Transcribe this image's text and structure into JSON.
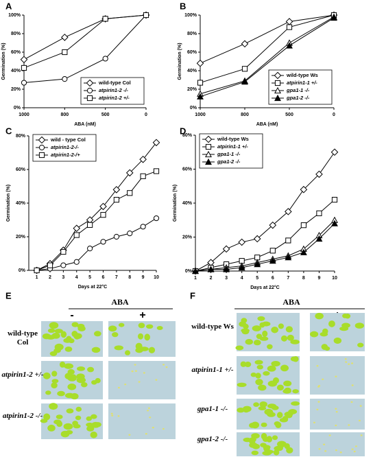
{
  "chart_data": [
    {
      "type": "line",
      "label": "A",
      "ylabel": "Germination (%)",
      "xlabel": "ABA (nM)",
      "categories": [
        "1000",
        "800",
        "500",
        "0"
      ],
      "ylim": [
        0,
        100
      ],
      "yticks": [
        {
          "value": 0,
          "label": "0%"
        },
        {
          "value": 20,
          "label": "20%"
        },
        {
          "value": 40,
          "label": "40%"
        },
        {
          "value": 60,
          "label": "60%"
        },
        {
          "value": 80,
          "label": "80%"
        },
        {
          "value": 100,
          "label": "100%"
        }
      ],
      "legend": "lower right",
      "series": [
        {
          "name": "wild-type Col",
          "color": "#000000",
          "marker": "diamond",
          "values": [
            52,
            76,
            96,
            100
          ]
        },
        {
          "name": "atpirin1-2 -/-",
          "color": "#000000",
          "marker": "circle",
          "values": [
            27,
            31,
            53,
            100
          ]
        },
        {
          "name": "atpirin1-2 +/-",
          "color": "#000000",
          "marker": "square",
          "values": [
            43,
            60,
            96,
            100
          ]
        }
      ]
    },
    {
      "type": "line",
      "label": "B",
      "ylabel": "Germination (%)",
      "xlabel": "ABA (nM)",
      "categories": [
        "1000",
        "800",
        "500",
        "0"
      ],
      "ylim": [
        0,
        100
      ],
      "yticks": [
        {
          "value": 0,
          "label": "0%"
        },
        {
          "value": 20,
          "label": "20%"
        },
        {
          "value": 40,
          "label": "40%"
        },
        {
          "value": 60,
          "label": "60%"
        },
        {
          "value": 80,
          "label": "80%"
        },
        {
          "value": 100,
          "label": "100%"
        }
      ],
      "legend": "lower right",
      "series": [
        {
          "name": "wild-type Ws",
          "color": "#000000",
          "marker": "diamond",
          "values": [
            48,
            69,
            93,
            100
          ]
        },
        {
          "name": "atpirin1-1 +/-",
          "color": "#000000",
          "marker": "square",
          "values": [
            27,
            42,
            87,
            100
          ]
        },
        {
          "name": "gpa1-1 -/-",
          "color": "#000000",
          "marker": "triangle",
          "values": [
            15,
            29,
            70,
            98
          ]
        },
        {
          "name": "gpa1-2 -/-",
          "color": "#000000",
          "marker": "triangle-filled",
          "values": [
            12,
            28,
            67,
            97
          ]
        }
      ]
    },
    {
      "type": "line",
      "label": "C",
      "ylabel": "Germination (%)",
      "xlabel": "Days at 22°C",
      "x": [
        1,
        2,
        3,
        4,
        5,
        6,
        7,
        8,
        9,
        10
      ],
      "xlim": [
        0.4,
        10
      ],
      "xticks": [
        1,
        2,
        3,
        4,
        5,
        6,
        7,
        8,
        9,
        10
      ],
      "ylim": [
        0,
        80
      ],
      "yticks": [
        {
          "value": 0,
          "label": "0%"
        },
        {
          "value": 20,
          "label": "20%"
        },
        {
          "value": 40,
          "label": "40%"
        },
        {
          "value": 60,
          "label": "60%"
        },
        {
          "value": 80,
          "label": "80%"
        }
      ],
      "legend": "upper left",
      "series": [
        {
          "name": "wild - type Col",
          "color": "#000000",
          "marker": "diamond",
          "values": [
            0,
            4,
            12,
            25,
            30,
            38,
            48,
            58,
            66,
            76
          ]
        },
        {
          "name": "atpirin1-2-/-",
          "color": "#000000",
          "marker": "circle",
          "values": [
            0,
            1,
            3,
            5,
            13,
            17,
            20,
            22,
            26,
            31
          ]
        },
        {
          "name": "atpirin1-2-/+",
          "color": "#000000",
          "marker": "square",
          "values": [
            0,
            3,
            11,
            21,
            27,
            33,
            42,
            46,
            56,
            59
          ]
        }
      ]
    },
    {
      "type": "line",
      "label": "D",
      "ylabel": "Germination (%)",
      "xlabel": "Days at 22°C",
      "x": [
        1,
        2,
        3,
        4,
        5,
        6,
        7,
        8,
        9,
        10
      ],
      "xlim": [
        1,
        10
      ],
      "xticks": [
        1,
        2,
        3,
        4,
        5,
        6,
        7,
        8,
        9,
        10
      ],
      "ylim": [
        0,
        80
      ],
      "yticks": [
        {
          "value": 0,
          "label": "0%"
        },
        {
          "value": 20,
          "label": "20%"
        },
        {
          "value": 40,
          "label": "40%"
        },
        {
          "value": 60,
          "label": "60%"
        },
        {
          "value": 80,
          "label": "80%"
        }
      ],
      "legend": "upper left",
      "series": [
        {
          "name": "wild-type Ws",
          "color": "#000000",
          "marker": "diamond",
          "values": [
            0,
            5,
            13,
            17,
            19,
            27,
            35,
            48,
            57,
            70
          ]
        },
        {
          "name": "atpirin1-1 +/-",
          "color": "#000000",
          "marker": "square",
          "values": [
            0,
            2,
            4,
            6,
            8,
            12,
            18,
            27,
            34,
            42
          ]
        },
        {
          "name": "gpa1-1 -/-",
          "color": "#000000",
          "marker": "triangle",
          "values": [
            0,
            1,
            2,
            3,
            5,
            7,
            9,
            13,
            21,
            30
          ]
        },
        {
          "name": "gpa1-2 -/-",
          "color": "#000000",
          "marker": "triangle-filled",
          "values": [
            0,
            1,
            1,
            2,
            4,
            6,
            8,
            11,
            19,
            28
          ]
        }
      ]
    }
  ],
  "photo_panels": [
    {
      "label": "E",
      "header": "ABA",
      "conditions": [
        "-",
        "+"
      ],
      "rows": [
        "wild-type Col",
        "atpirin1-2 +/-",
        "atpirin1-2 -/-"
      ]
    },
    {
      "label": "F",
      "header": "ABA",
      "conditions": [
        "-",
        "+"
      ],
      "rows": [
        "wild-type Ws",
        "atpirin1-1 +/-",
        "gpa1-1 -/-",
        "gpa1-2 -/-"
      ]
    }
  ]
}
